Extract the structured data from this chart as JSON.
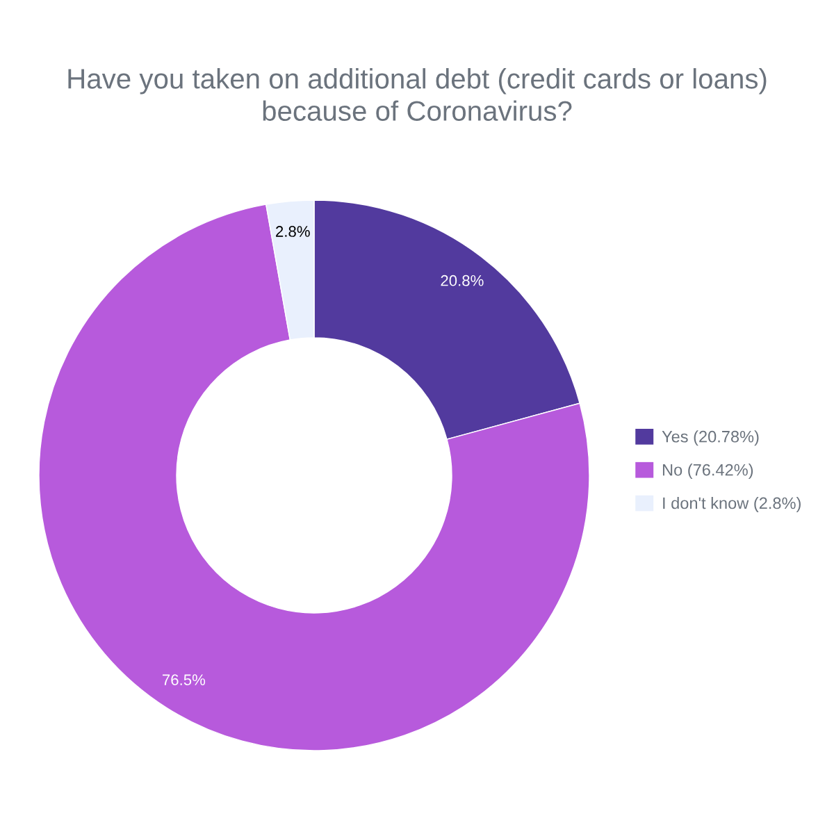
{
  "chart_data": {
    "type": "donut",
    "title": "Have you taken on additional debt (credit cards or loans)\nbecause of Coronavirus?",
    "categories": [
      "Yes (20.78%)",
      "No (76.42%)",
      "I don't know (2.8%)"
    ],
    "values": [
      20.8,
      76.5,
      2.8
    ],
    "value_labels": [
      "20.8%",
      "76.5%",
      "2.8%"
    ],
    "colors": [
      "#523a9e",
      "#b75adc",
      "#e9f0fd"
    ],
    "legend": "right"
  }
}
